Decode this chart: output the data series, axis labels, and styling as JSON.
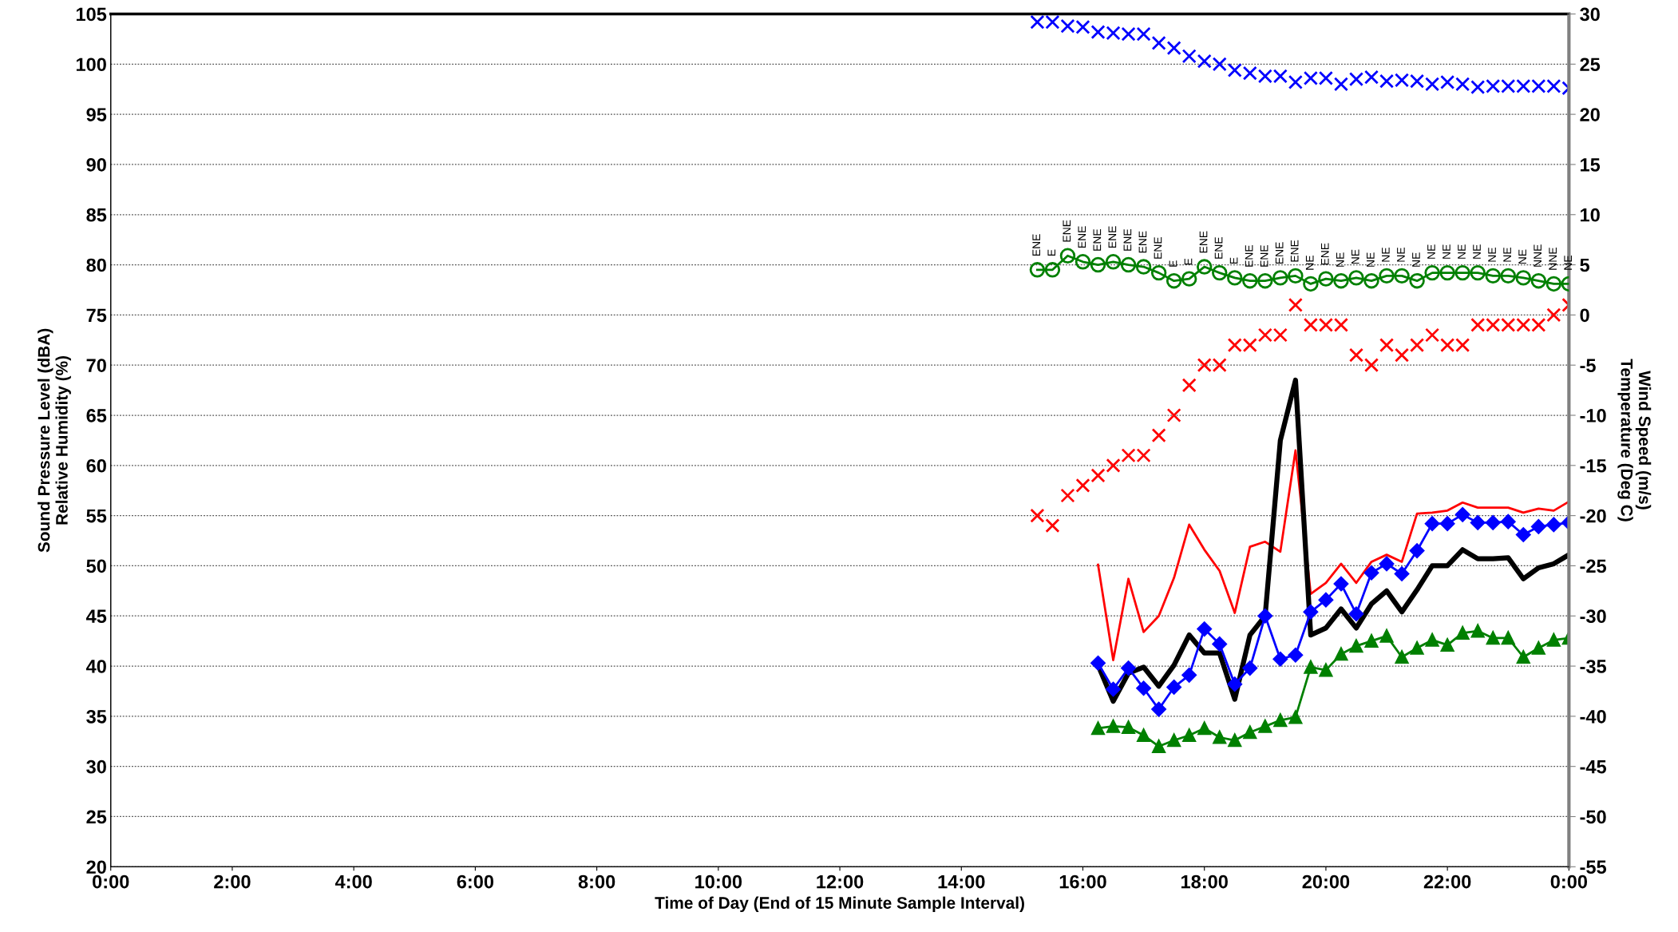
{
  "chart_data": {
    "type": "line",
    "xlabel": "Time of Day (End of 15 Minute Sample Interval)",
    "ylabel": "Sound Pressure Level (dBA)\nRelative Humidity (%)",
    "y2label": "Wind Speed (m/s)\nTemperature (Deg C)",
    "xlim": [
      0,
      24
    ],
    "xticks": [
      {
        "value": 0,
        "label": "0:00"
      },
      {
        "value": 2,
        "label": "2:00"
      },
      {
        "value": 4,
        "label": "4:00"
      },
      {
        "value": 6,
        "label": "6:00"
      },
      {
        "value": 8,
        "label": "8:00"
      },
      {
        "value": 10,
        "label": "10:00"
      },
      {
        "value": 12,
        "label": "12:00"
      },
      {
        "value": 14,
        "label": "14:00"
      },
      {
        "value": 16,
        "label": "16:00"
      },
      {
        "value": 18,
        "label": "18:00"
      },
      {
        "value": 20,
        "label": "20:00"
      },
      {
        "value": 22,
        "label": "22:00"
      },
      {
        "value": 24,
        "label": "0:00"
      }
    ],
    "ylim": [
      20,
      105
    ],
    "yticks": [
      20,
      25,
      30,
      35,
      40,
      45,
      50,
      55,
      60,
      65,
      70,
      75,
      80,
      85,
      90,
      95,
      100,
      105
    ],
    "y2lim": [
      -55,
      30
    ],
    "y2ticks": [
      -55,
      -50,
      -45,
      -40,
      -35,
      -30,
      -25,
      -20,
      -15,
      -10,
      -5,
      0,
      5,
      10,
      15,
      20,
      25,
      30
    ],
    "grid": "y",
    "series": [
      {
        "type": "scatter",
        "axis": "y2",
        "color": "#0000ff",
        "marker": "cross",
        "x": [
          15.25,
          15.5,
          15.75,
          16,
          16.25,
          16.5,
          16.75,
          17,
          17.25,
          17.5,
          17.75,
          18,
          18.25,
          18.5,
          18.75,
          19,
          19.25,
          19.5,
          19.75,
          20,
          20.25,
          20.5,
          20.75,
          21,
          21.25,
          21.5,
          21.75,
          22,
          22.25,
          22.5,
          22.75,
          23,
          23.25,
          23.5,
          23.75,
          24
        ],
        "values": [
          29.2,
          29.2,
          28.8,
          28.7,
          28.2,
          28.1,
          28.0,
          28.0,
          27.1,
          26.6,
          25.8,
          25.3,
          25.0,
          24.4,
          24.1,
          23.8,
          23.8,
          23.2,
          23.6,
          23.6,
          23.0,
          23.5,
          23.7,
          23.3,
          23.4,
          23.3,
          23.0,
          23.2,
          23.0,
          22.7,
          22.8,
          22.8,
          22.8,
          22.8,
          22.8,
          22.6
        ]
      },
      {
        "axis": "y2",
        "color": "#008000",
        "marker": "circle",
        "x": [
          15.25,
          15.5,
          15.75,
          16,
          16.25,
          16.5,
          16.75,
          17,
          17.25,
          17.5,
          17.75,
          18,
          18.25,
          18.5,
          18.75,
          19,
          19.25,
          19.5,
          19.75,
          20,
          20.25,
          20.5,
          20.75,
          21,
          21.25,
          21.5,
          21.75,
          22,
          22.25,
          22.5,
          22.75,
          23,
          23.25,
          23.5,
          23.75,
          24
        ],
        "values": [
          4.5,
          4.5,
          5.9,
          5.3,
          5.0,
          5.3,
          5.0,
          4.8,
          4.2,
          3.4,
          3.6,
          4.8,
          4.2,
          3.7,
          3.4,
          3.4,
          3.7,
          3.9,
          3.1,
          3.6,
          3.4,
          3.7,
          3.4,
          3.9,
          3.9,
          3.4,
          4.2,
          4.2,
          4.2,
          4.2,
          3.9,
          3.9,
          3.7,
          3.4,
          3.1,
          3.1
        ],
        "value_labels": [
          "ENE",
          "E",
          "ENE",
          "ENE",
          "ENE",
          "ENE",
          "ENE",
          "ENE",
          "ENE",
          "E",
          "E",
          "ENE",
          "ENE",
          "E",
          "ENE",
          "ENE",
          "ENE",
          "ENE",
          "NE",
          "ENE",
          "NE",
          "NE",
          "NE",
          "NE",
          "NE",
          "NE",
          "NE",
          "NE",
          "NE",
          "NE",
          "NE",
          "NE",
          "NE",
          "NNE",
          "NNE",
          "NE"
        ]
      },
      {
        "type": "scatter",
        "color": "#ff0000",
        "marker": "cross",
        "x": [
          15.25,
          15.5,
          15.75,
          16,
          16.25,
          16.5,
          16.75,
          17,
          17.25,
          17.5,
          17.75,
          18,
          18.25,
          18.5,
          18.75,
          19,
          19.25,
          19.5,
          19.75,
          20,
          20.25,
          20.5,
          20.75,
          21,
          21.25,
          21.5,
          21.75,
          22,
          22.25,
          22.5,
          22.75,
          23,
          23.25,
          23.5,
          23.75,
          24
        ],
        "values": [
          55,
          54,
          57,
          58,
          59,
          60,
          61,
          61,
          63,
          65,
          68,
          70,
          70,
          72,
          72,
          73,
          73,
          76,
          74,
          74,
          74,
          71,
          70,
          72,
          71,
          72,
          73,
          72,
          72,
          74,
          74,
          74,
          74,
          74,
          75,
          76
        ]
      },
      {
        "color": "#ff0000",
        "marker": "none",
        "x": [
          16.25,
          16.5,
          16.75,
          17,
          17.25,
          17.5,
          17.75,
          18,
          18.25,
          18.5,
          18.75,
          19,
          19.25,
          19.5,
          19.75,
          20,
          20.25,
          20.5,
          20.75,
          21,
          21.25,
          21.5,
          21.75,
          22,
          22.25,
          22.5,
          22.75,
          23,
          23.25,
          23.5,
          23.75,
          24
        ],
        "values": [
          50.1,
          40.6,
          48.7,
          43.4,
          45.0,
          48.8,
          54.1,
          51.6,
          49.5,
          45.3,
          51.9,
          52.4,
          51.4,
          61.5,
          47.2,
          48.3,
          50.2,
          48.3,
          50.4,
          51.1,
          50.4,
          55.2,
          55.3,
          55.5,
          56.3,
          55.8,
          55.8,
          55.8,
          55.3,
          55.7,
          55.5,
          56.4
        ]
      },
      {
        "color": "#0000ff",
        "marker": "diamond",
        "x": [
          16.25,
          16.5,
          16.75,
          17,
          17.25,
          17.5,
          17.75,
          18,
          18.25,
          18.5,
          18.75,
          19,
          19.25,
          19.5,
          19.75,
          20,
          20.25,
          20.5,
          20.75,
          21,
          21.25,
          21.5,
          21.75,
          22,
          22.25,
          22.5,
          22.75,
          23,
          23.25,
          23.5,
          23.75,
          24
        ],
        "values": [
          40.3,
          37.7,
          39.8,
          37.8,
          35.7,
          37.9,
          39.1,
          43.7,
          42.2,
          38.2,
          39.8,
          45.0,
          40.7,
          41.1,
          45.4,
          46.6,
          48.2,
          45.2,
          49.3,
          50.2,
          49.2,
          51.5,
          54.2,
          54.2,
          55.1,
          54.3,
          54.3,
          54.4,
          53.1,
          53.9,
          54.1,
          54.3
        ]
      },
      {
        "color": "#000000",
        "marker": "none",
        "x": [
          16.25,
          16.5,
          16.75,
          17,
          17.25,
          17.5,
          17.75,
          18,
          18.25,
          18.5,
          18.75,
          19,
          19.25,
          19.5,
          19.75,
          20,
          20.25,
          20.5,
          20.75,
          21,
          21.25,
          21.5,
          21.75,
          22,
          22.25,
          22.5,
          22.75,
          23,
          23.25,
          23.5,
          23.75,
          24
        ],
        "values": [
          40.1,
          36.5,
          39.3,
          39.9,
          38.0,
          40.1,
          43.1,
          41.3,
          41.3,
          36.7,
          43.1,
          45.0,
          62.5,
          68.5,
          43.1,
          43.8,
          45.7,
          43.8,
          46.2,
          47.5,
          45.4,
          47.6,
          50.0,
          50.0,
          51.6,
          50.7,
          50.7,
          50.8,
          48.7,
          49.8,
          50.2,
          51.1
        ]
      },
      {
        "color": "#008000",
        "marker": "triangle",
        "x": [
          16.25,
          16.5,
          16.75,
          17,
          17.25,
          17.5,
          17.75,
          18,
          18.25,
          18.5,
          18.75,
          19,
          19.25,
          19.5,
          19.75,
          20,
          20.25,
          20.5,
          20.75,
          21,
          21.25,
          21.5,
          21.75,
          22,
          22.25,
          22.5,
          22.75,
          23,
          23.25,
          23.5,
          23.75,
          24
        ],
        "values": [
          33.8,
          34.0,
          33.9,
          33.1,
          32.0,
          32.6,
          33.1,
          33.8,
          32.9,
          32.6,
          33.4,
          34.0,
          34.6,
          34.9,
          39.9,
          39.6,
          41.2,
          42.0,
          42.5,
          43.0,
          40.9,
          41.8,
          42.6,
          42.1,
          43.3,
          43.5,
          42.8,
          42.8,
          40.9,
          41.8,
          42.6,
          42.8
        ]
      }
    ]
  }
}
